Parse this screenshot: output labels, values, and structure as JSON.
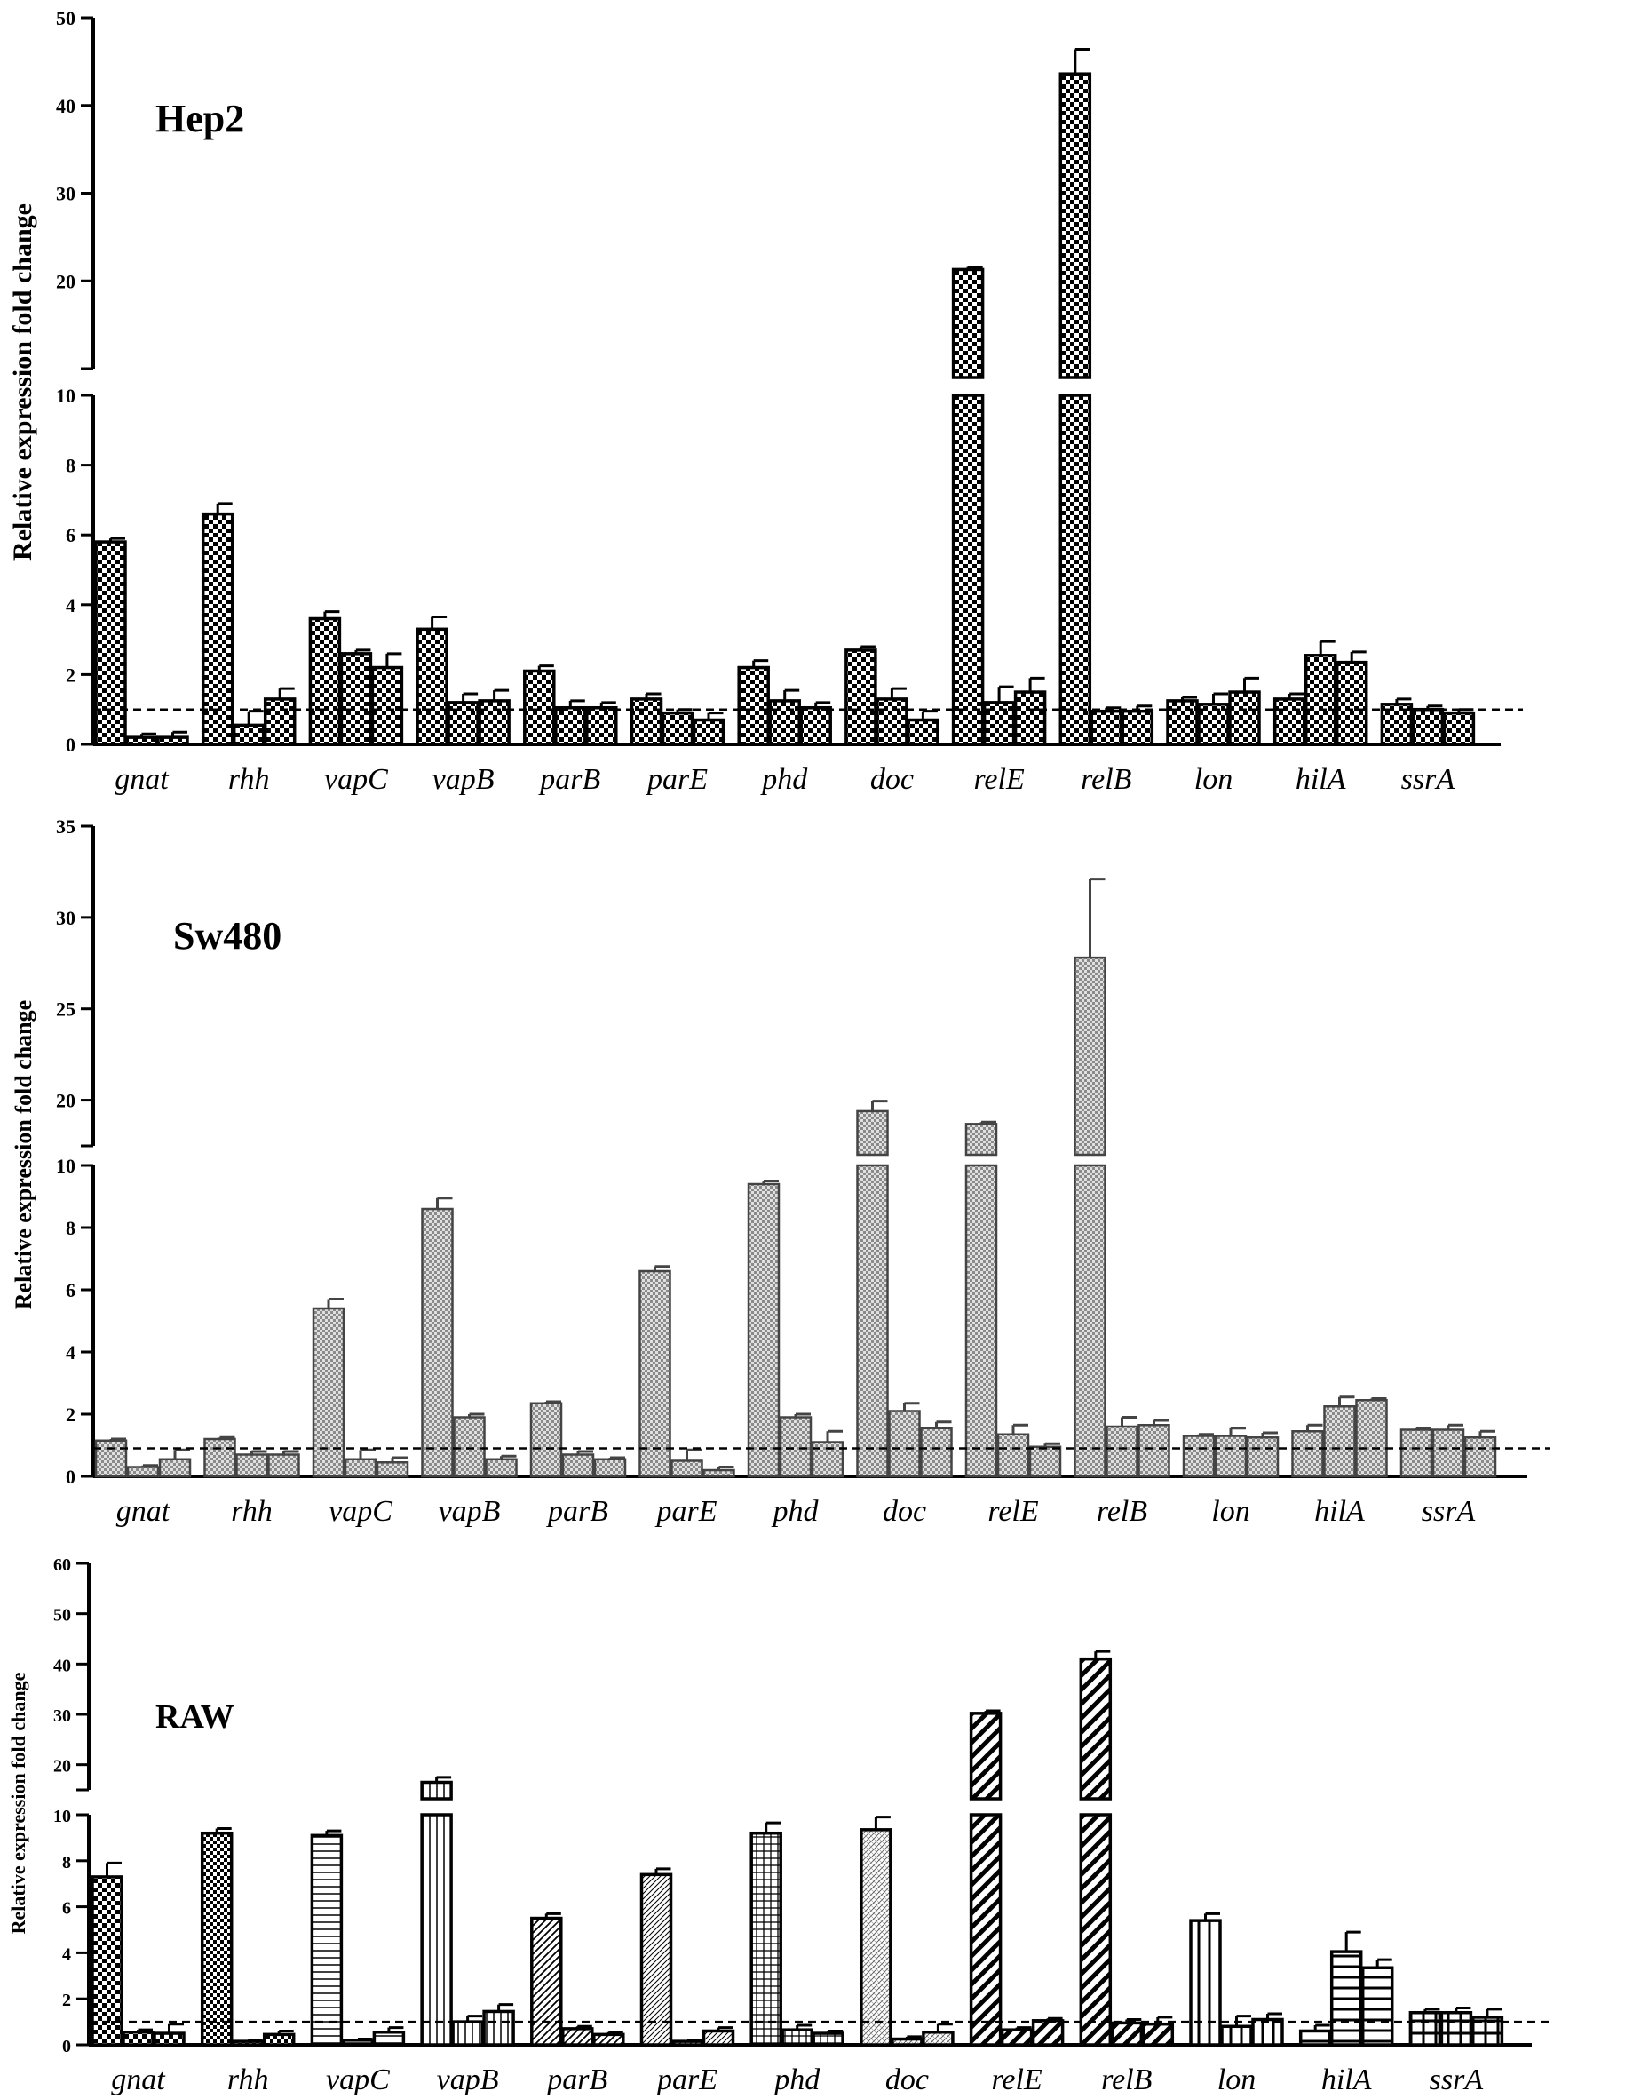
{
  "chart_data": [
    {
      "type": "bar",
      "title": "Hep2",
      "ylabel": "Relative expression fold change",
      "categories": [
        "gnat",
        "rhh",
        "vapC",
        "vapB",
        "parB",
        "parE",
        "phd",
        "doc",
        "relE",
        "relB",
        "lon",
        "hilA",
        "ssrA"
      ],
      "axis_break": {
        "lower": [
          0,
          10
        ],
        "upper": [
          10,
          50
        ]
      },
      "lower_ticks": [
        "0",
        "2",
        "4",
        "6",
        "8",
        "10"
      ],
      "upper_ticks": [
        "20",
        "30",
        "40",
        "50"
      ],
      "baseline": 1,
      "pattern": "checker",
      "fill_color": "#ffffff",
      "ink_color": "#000000",
      "series": [
        {
          "name": "bar1",
          "values": [
            5.8,
            6.6,
            3.6,
            3.3,
            2.1,
            1.3,
            2.2,
            2.7,
            21.3,
            43.6,
            1.25,
            1.3,
            1.15
          ],
          "errors": [
            0.1,
            0.3,
            0.2,
            0.35,
            0.15,
            0.15,
            0.2,
            0.1,
            0.3,
            2.8,
            0.1,
            0.15,
            0.15
          ]
        },
        {
          "name": "bar2",
          "values": [
            0.2,
            0.55,
            2.6,
            1.2,
            1.05,
            0.9,
            1.25,
            1.3,
            1.2,
            0.95,
            1.15,
            2.55,
            1.0
          ]
        },
        {
          "name": "bar3",
          "values": [
            0.2,
            1.3,
            2.2,
            1.25,
            1.05,
            0.7,
            1.05,
            0.7,
            1.5,
            0.95,
            1.5,
            2.35,
            0.9
          ]
        }
      ],
      "errors2": [
        0.1,
        0.4,
        0.1,
        0.25,
        0.2,
        0.1,
        0.3,
        0.3,
        0.45,
        0.1,
        0.3,
        0.4,
        0.1
      ],
      "errors3": [
        0.15,
        0.3,
        0.4,
        0.3,
        0.15,
        0.2,
        0.15,
        0.25,
        0.4,
        0.15,
        0.4,
        0.3,
        0.1
      ]
    },
    {
      "type": "bar",
      "title": "Sw480",
      "ylabel": "Relative expression fold change",
      "categories": [
        "gnat",
        "rhh",
        "vapC",
        "vapB",
        "parB",
        "parE",
        "phd",
        "doc",
        "relE",
        "relB",
        "lon",
        "hilA",
        "ssrA"
      ],
      "axis_break": {
        "lower": [
          0,
          10
        ],
        "upper": [
          17.5,
          35
        ]
      },
      "lower_ticks": [
        "0",
        "2",
        "4",
        "6",
        "8",
        "10"
      ],
      "upper_ticks": [
        "20",
        "25",
        "30",
        "35"
      ],
      "baseline": 0.9,
      "pattern": "fine-gray",
      "fill_color": "#d8d8d8",
      "ink_color": "#444444",
      "series": [
        {
          "name": "bar1",
          "values": [
            1.15,
            1.2,
            5.4,
            8.6,
            2.35,
            6.6,
            9.4,
            19.4,
            18.7,
            27.8,
            1.3,
            1.45,
            1.5
          ],
          "errors": [
            0.05,
            0.05,
            0.3,
            0.35,
            0.05,
            0.15,
            0.1,
            0.55,
            0.1,
            4.3,
            0.05,
            0.2,
            0.05
          ]
        },
        {
          "name": "bar2",
          "values": [
            0.3,
            0.7,
            0.55,
            1.9,
            0.7,
            0.5,
            1.9,
            2.1,
            1.35,
            1.6,
            1.3,
            2.25,
            1.5
          ]
        },
        {
          "name": "bar3",
          "values": [
            0.55,
            0.7,
            0.45,
            0.55,
            0.55,
            0.2,
            1.1,
            1.55,
            0.95,
            1.65,
            1.25,
            2.45,
            1.25
          ]
        }
      ],
      "errors2": [
        0.05,
        0.1,
        0.3,
        0.1,
        0.1,
        0.35,
        0.1,
        0.25,
        0.3,
        0.3,
        0.25,
        0.3,
        0.15
      ],
      "errors3": [
        0.3,
        0.1,
        0.15,
        0.1,
        0.05,
        0.1,
        0.35,
        0.2,
        0.1,
        0.15,
        0.15,
        0.05,
        0.2
      ]
    },
    {
      "type": "bar",
      "title": "RAW",
      "ylabel": "Relative expression fold change",
      "categories": [
        "gnat",
        "rhh",
        "vapC",
        "vapB",
        "parB",
        "parE",
        "phd",
        "doc",
        "relE",
        "relB",
        "lon",
        "hilA",
        "ssrA"
      ],
      "axis_break": {
        "lower": [
          0,
          10
        ],
        "upper": [
          15,
          60
        ]
      },
      "lower_ticks": [
        "0",
        "2",
        "4",
        "6",
        "8",
        "10"
      ],
      "upper_ticks": [
        "20",
        "30",
        "40",
        "50",
        "60"
      ],
      "baseline": 1,
      "patterns": [
        "checker",
        "checker-dense",
        "hlines",
        "vlines",
        "diag-right",
        "diag-right-thin",
        "grid",
        "dots",
        "diag-right-bold",
        "diag-right-bold",
        "vlines-bold",
        "hlines-bold",
        "grid-bold"
      ],
      "fill_color": "#ffffff",
      "ink_color": "#000000",
      "series": [
        {
          "name": "bar1",
          "values": [
            7.3,
            9.2,
            9.1,
            16.5,
            5.5,
            7.4,
            9.2,
            9.35,
            30.2,
            41.0,
            5.4,
            0.6,
            1.4
          ],
          "errors": [
            0.6,
            0.2,
            0.2,
            1.0,
            0.2,
            0.25,
            0.45,
            0.55,
            0.5,
            1.5,
            0.3,
            0.25,
            0.15
          ]
        },
        {
          "name": "bar2",
          "values": [
            0.55,
            0.15,
            0.2,
            1.0,
            0.7,
            0.15,
            0.65,
            0.25,
            0.65,
            0.95,
            0.8,
            4.05,
            1.4
          ]
        },
        {
          "name": "bar3",
          "values": [
            0.5,
            0.45,
            0.55,
            1.45,
            0.45,
            0.6,
            0.5,
            0.55,
            1.05,
            0.9,
            1.1,
            3.35,
            1.2
          ]
        }
      ],
      "errors2": [
        0.1,
        0.05,
        0.05,
        0.25,
        0.1,
        0.05,
        0.2,
        0.1,
        0.1,
        0.15,
        0.45,
        0.85,
        0.2
      ],
      "errors3": [
        0.4,
        0.15,
        0.2,
        0.3,
        0.1,
        0.15,
        0.1,
        0.35,
        0.1,
        0.3,
        0.25,
        0.35,
        0.35
      ]
    }
  ]
}
